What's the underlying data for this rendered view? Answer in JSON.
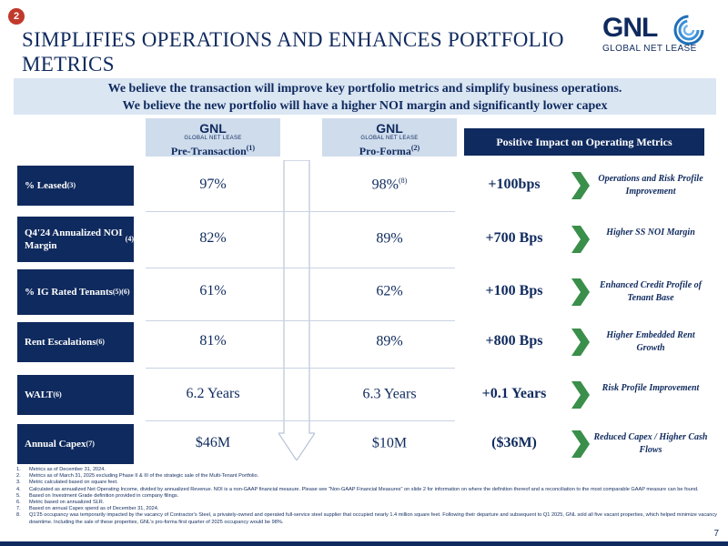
{
  "slide_number_badge": "2",
  "title": "SIMPLIFIES OPERATIONS AND ENHANCES PORTFOLIO METRICS",
  "logo": {
    "word": "GNL",
    "subtitle": "GLOBAL NET LEASE"
  },
  "banner": {
    "line1": "We believe the transaction will improve key portfolio metrics and simplify business operations.",
    "line2": "We believe the new portfolio will have a higher NOI margin and significantly lower capex"
  },
  "columns": {
    "pre": {
      "logo_word": "GNL",
      "logo_sub": "GLOBAL NET LEASE",
      "label": "Pre-Transaction",
      "note": "(1)"
    },
    "pro": {
      "logo_word": "GNL",
      "logo_sub": "GLOBAL NET LEASE",
      "label": "Pro-Forma",
      "note": "(2)"
    },
    "impact": "Positive Impact on Operating Metrics"
  },
  "rows": [
    {
      "label": "% Leased",
      "note": "(3)",
      "pre": "97%",
      "pro": "98%",
      "pro_note": "(8)",
      "delta": "+100bps",
      "impact": "Operations and Risk Profile Improvement"
    },
    {
      "label": "Q4'24 Annualized NOI Margin",
      "note": "(4)",
      "pre": "82%",
      "pro": "89%",
      "pro_note": "",
      "delta": "+700 Bps",
      "impact": "Higher SS NOI Margin"
    },
    {
      "label": "% IG Rated Tenants",
      "note": "(5)(6)",
      "pre": "61%",
      "pro": "62%",
      "pro_note": "",
      "delta": "+100 Bps",
      "impact": "Enhanced Credit Profile of Tenant Base"
    },
    {
      "label": "Rent Escalations",
      "note": "(6)",
      "pre": "81%",
      "pro": "89%",
      "pro_note": "",
      "delta": "+800 Bps",
      "impact": "Higher Embedded Rent Growth"
    },
    {
      "label": "WALT",
      "note": "(6)",
      "pre": "6.2 Years",
      "pro": "6.3 Years",
      "pro_note": "",
      "delta": "+0.1 Years",
      "impact": "Risk Profile Improvement"
    },
    {
      "label": "Annual Capex",
      "note": "(7)",
      "pre": "$46M",
      "pro": "$10M",
      "pro_note": "",
      "delta": "($36M)",
      "impact": "Reduced Capex / Higher Cash Flows"
    }
  ],
  "footnotes": [
    {
      "num": "1.",
      "text": "Metrics as of December 31, 2024."
    },
    {
      "num": "2.",
      "text": "Metrics as of March 31, 2025 excluding Phase II & III of the strategic sale of the Multi-Tenant Portfolio."
    },
    {
      "num": "3.",
      "text": "Metric calculated based on square feet."
    },
    {
      "num": "4.",
      "text": "Calculated as annualized Net Operating Income, divided by annualized Revenue. NOI is a non-GAAP financial measure. Please see \"Non-GAAP Financial Measures\" on slide 2 for information on where the definition thereof and a reconciliation to the most comparable GAAP measure can be found."
    },
    {
      "num": "5.",
      "text": "Based on Investment Grade definition provided in company filings."
    },
    {
      "num": "6.",
      "text": "Metric based on annualized SLR."
    },
    {
      "num": "7.",
      "text": "Based on annual Capex spend as of December 31, 2024."
    },
    {
      "num": "8.",
      "text": "Q1'25 occupancy was temporarily impacted by the vacancy of Contractor's Steel, a privately-owned and operated full-service steel supplier that occupied nearly 1.4 million square feet. Following their departure and subsequent to Q1 2025, GNL sold all five vacant properties, which helped minimize vacancy downtime. Including the sale of these properties, GNL's pro-forma first quarter of 2025 occupancy would be 98%."
    }
  ],
  "page_number": "7",
  "colors": {
    "navy": "#0f2a5e",
    "accent_green": "#3a8f4a",
    "banner_bg": "#dbe6f3",
    "badge_red": "#c0392b"
  }
}
